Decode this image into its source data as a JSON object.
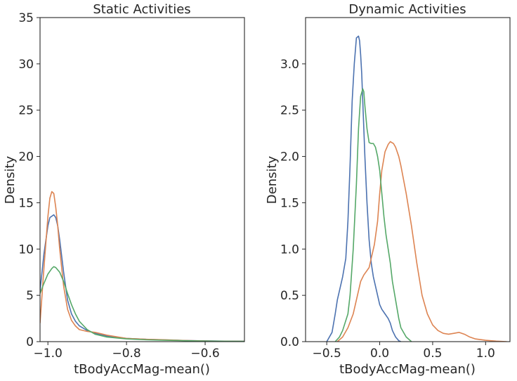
{
  "chart_data": [
    {
      "type": "line",
      "title": "Static Activities",
      "xlabel": "tBodyAccMag-mean()",
      "ylabel": "Density",
      "xlim": [
        -1.02,
        -0.5
      ],
      "ylim": [
        0,
        35
      ],
      "xticks": [
        -1.0,
        -0.8,
        -0.6
      ],
      "xtick_labels": [
        "−1.0",
        "−0.8",
        "−0.6"
      ],
      "yticks": [
        0,
        5,
        10,
        15,
        20,
        25,
        30,
        35
      ],
      "ytick_labels": [
        "0",
        "5",
        "10",
        "15",
        "20",
        "25",
        "30",
        "35"
      ],
      "grid": false,
      "series": [
        {
          "color": "#4c72b0",
          "x": [
            -1.02,
            -1.01,
            -1.0,
            -0.995,
            -0.985,
            -0.98,
            -0.975,
            -0.97,
            -0.96,
            -0.95,
            -0.94,
            -0.93,
            -0.92,
            -0.9,
            -0.88,
            -0.85,
            -0.8,
            -0.75,
            -0.7,
            -0.65,
            -0.6,
            -0.55,
            -0.5
          ],
          "y": [
            5.5,
            9.5,
            12.5,
            13.4,
            13.7,
            13.4,
            12.5,
            11.0,
            7.5,
            4.5,
            3.0,
            2.2,
            1.7,
            1.2,
            0.9,
            0.6,
            0.35,
            0.25,
            0.18,
            0.12,
            0.08,
            0.05,
            0.04
          ]
        },
        {
          "color": "#dd8452",
          "x": [
            -1.02,
            -1.01,
            -1.0,
            -0.995,
            -0.99,
            -0.985,
            -0.98,
            -0.975,
            -0.97,
            -0.96,
            -0.95,
            -0.94,
            -0.93,
            -0.92,
            -0.9,
            -0.88,
            -0.86,
            -0.85,
            -0.8,
            -0.75,
            -0.7,
            -0.65,
            -0.6,
            -0.55,
            -0.5
          ],
          "y": [
            2.0,
            8.0,
            13.5,
            15.5,
            16.2,
            16.0,
            14.5,
            12.5,
            10.0,
            6.0,
            3.5,
            2.3,
            1.7,
            1.3,
            1.1,
            1.0,
            0.8,
            0.7,
            0.35,
            0.25,
            0.2,
            0.12,
            0.07,
            0.04,
            0.03
          ]
        },
        {
          "color": "#55a868",
          "x": [
            -1.02,
            -1.01,
            -1.0,
            -0.99,
            -0.985,
            -0.98,
            -0.97,
            -0.96,
            -0.95,
            -0.94,
            -0.93,
            -0.92,
            -0.9,
            -0.88,
            -0.85,
            -0.8,
            -0.75,
            -0.7,
            -0.65,
            -0.6,
            -0.55,
            -0.5
          ],
          "y": [
            5.2,
            6.3,
            7.3,
            7.9,
            8.1,
            8.0,
            7.5,
            6.5,
            5.2,
            4.0,
            3.0,
            2.2,
            1.3,
            0.8,
            0.5,
            0.3,
            0.2,
            0.15,
            0.1,
            0.06,
            0.04,
            0.03
          ]
        }
      ]
    },
    {
      "type": "line",
      "title": "Dynamic Activities",
      "xlabel": "tBodyAccMag-mean()",
      "ylabel": "Density",
      "xlim": [
        -0.7,
        1.23
      ],
      "ylim": [
        0,
        3.5
      ],
      "xticks": [
        -0.5,
        0.0,
        0.5,
        1.0
      ],
      "xtick_labels": [
        "−0.5",
        "0.0",
        "0.5",
        "1.0"
      ],
      "yticks": [
        0.0,
        0.5,
        1.0,
        1.5,
        2.0,
        2.5,
        3.0
      ],
      "ytick_labels": [
        "0.0",
        "0.5",
        "1.0",
        "1.5",
        "2.0",
        "2.5",
        "3.0"
      ],
      "grid": false,
      "series": [
        {
          "color": "#4c72b0",
          "x": [
            -0.5,
            -0.45,
            -0.42,
            -0.4,
            -0.38,
            -0.35,
            -0.32,
            -0.3,
            -0.28,
            -0.26,
            -0.24,
            -0.22,
            -0.2,
            -0.19,
            -0.18,
            -0.17,
            -0.16,
            -0.15,
            -0.14,
            -0.12,
            -0.1,
            -0.08,
            -0.06,
            -0.04,
            -0.02,
            0.0,
            0.02,
            0.05,
            0.08,
            0.1,
            0.12,
            0.15,
            0.18,
            0.2
          ],
          "y": [
            0.0,
            0.1,
            0.3,
            0.45,
            0.55,
            0.7,
            0.9,
            1.3,
            1.9,
            2.6,
            3.0,
            3.28,
            3.3,
            3.25,
            3.1,
            2.9,
            2.6,
            2.3,
            2.0,
            1.5,
            1.1,
            0.85,
            0.7,
            0.6,
            0.5,
            0.4,
            0.35,
            0.3,
            0.25,
            0.2,
            0.12,
            0.05,
            0.01,
            0.0
          ]
        },
        {
          "color": "#dd8452",
          "x": [
            -0.4,
            -0.35,
            -0.3,
            -0.25,
            -0.2,
            -0.18,
            -0.15,
            -0.1,
            -0.05,
            -0.02,
            0.0,
            0.02,
            0.05,
            0.08,
            0.1,
            0.13,
            0.15,
            0.18,
            0.2,
            0.25,
            0.3,
            0.35,
            0.4,
            0.45,
            0.5,
            0.55,
            0.6,
            0.65,
            0.7,
            0.75,
            0.8,
            0.85,
            0.9,
            1.0,
            1.1,
            1.2
          ],
          "y": [
            0.0,
            0.05,
            0.15,
            0.3,
            0.55,
            0.65,
            0.72,
            0.8,
            1.05,
            1.3,
            1.6,
            1.85,
            2.05,
            2.13,
            2.16,
            2.14,
            2.1,
            2.0,
            1.9,
            1.6,
            1.25,
            0.85,
            0.5,
            0.3,
            0.18,
            0.12,
            0.09,
            0.08,
            0.09,
            0.1,
            0.08,
            0.05,
            0.03,
            0.015,
            0.005,
            0.0
          ]
        },
        {
          "color": "#55a868",
          "x": [
            -0.42,
            -0.38,
            -0.35,
            -0.3,
            -0.28,
            -0.25,
            -0.22,
            -0.2,
            -0.18,
            -0.16,
            -0.15,
            -0.14,
            -0.12,
            -0.1,
            -0.08,
            -0.06,
            -0.04,
            -0.02,
            0.0,
            0.02,
            0.04,
            0.06,
            0.08,
            0.1,
            0.12,
            0.15,
            0.18,
            0.2,
            0.25,
            0.3
          ],
          "y": [
            0.0,
            0.05,
            0.12,
            0.3,
            0.5,
            1.0,
            1.7,
            2.3,
            2.65,
            2.73,
            2.7,
            2.55,
            2.3,
            2.15,
            2.14,
            2.14,
            2.1,
            2.0,
            1.85,
            1.6,
            1.35,
            1.15,
            1.0,
            0.85,
            0.65,
            0.45,
            0.25,
            0.15,
            0.05,
            0.0
          ]
        }
      ]
    }
  ]
}
